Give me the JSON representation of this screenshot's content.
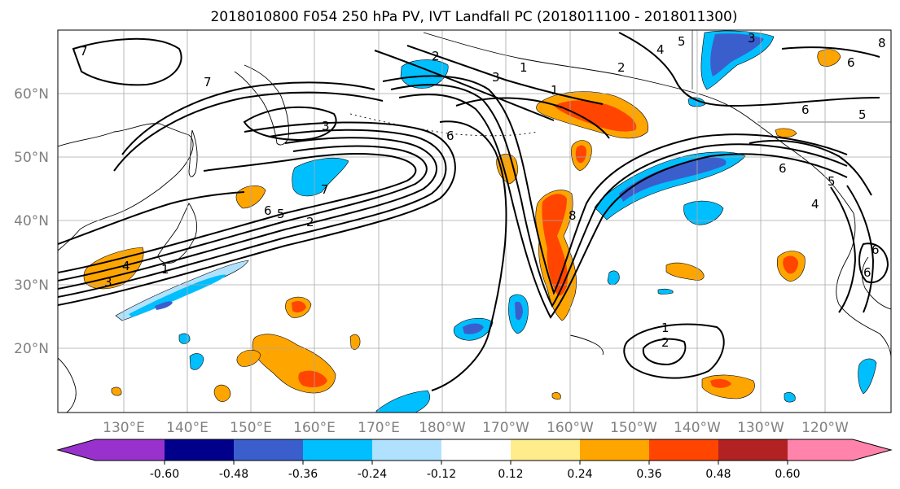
{
  "title": "2018010800 F054 250 hPa PV, IVT Landfall PC (2018011100 - 2018011300)",
  "lat_labels": [
    "60°N",
    "50°N",
    "40°N",
    "30°N",
    "20°N"
  ],
  "lon_labels": [
    "130°E",
    "140°E",
    "150°E",
    "160°E",
    "170°E",
    "180°W",
    "170°W",
    "160°W",
    "150°W",
    "140°W",
    "130°W",
    "120°W"
  ],
  "colorbar": {
    "colors": [
      "#9932cc",
      "#00008b",
      "#3a5fcd",
      "#00bfff",
      "#b0e2ff",
      "#ffffff",
      "#ffec8b",
      "#ffa500",
      "#ff4500",
      "#b22222",
      "#ff83aa"
    ],
    "tick_labels": [
      "-0.60",
      "-0.48",
      "-0.36",
      "-0.24",
      "-0.12",
      "0.12",
      "0.24",
      "0.36",
      "0.48",
      "0.60"
    ]
  },
  "contour_labels": [
    "7",
    "7",
    "6",
    "5",
    "4",
    "3",
    "2",
    "1",
    "3",
    "5",
    "6",
    "7",
    "6",
    "5",
    "2",
    "1",
    "3",
    "6",
    "8",
    "4",
    "2",
    "1",
    "6",
    "6",
    "4",
    "5",
    "6",
    "3",
    "8",
    "1",
    "2"
  ],
  "colors": {
    "blue_dark": "#3a5fcd",
    "blue": "#00bfff",
    "blue_light": "#b0e2ff",
    "orange": "#ffa500",
    "red": "#ff4500",
    "yellow": "#ffec8b"
  }
}
